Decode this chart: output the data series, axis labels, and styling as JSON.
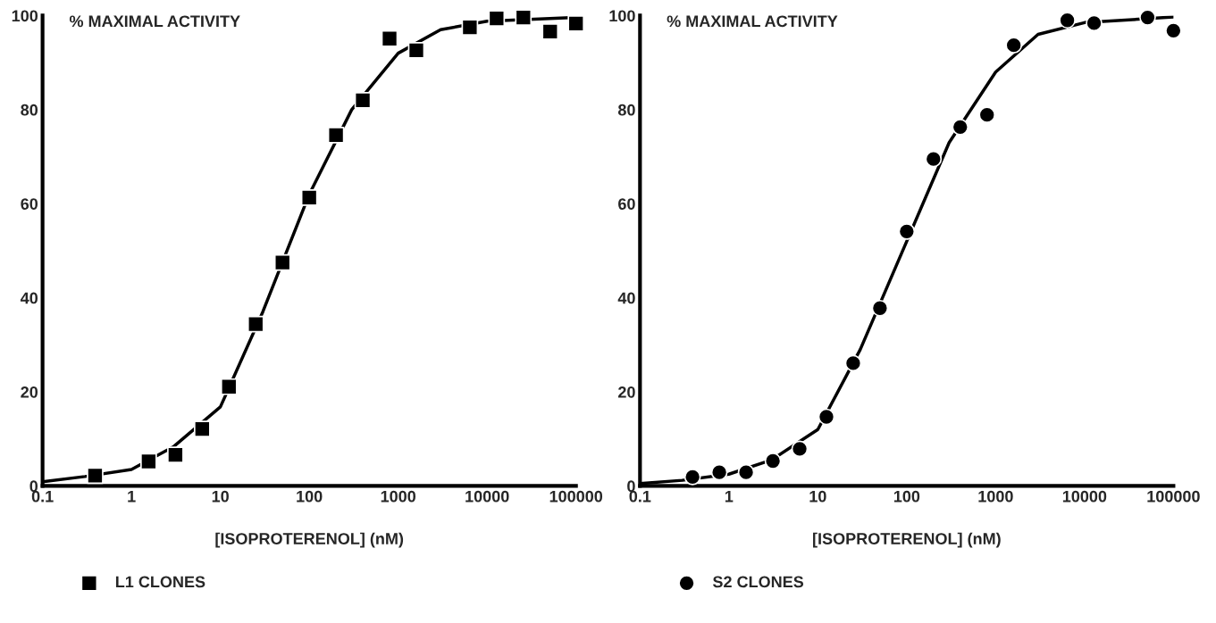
{
  "chart_data": [
    {
      "type": "scatter",
      "ylabel": "% MAXIMAL ACTIVITY",
      "xlabel": "[ISOPROTERENOL] (nM)",
      "log": "x",
      "xlim": [
        0.1,
        100000
      ],
      "ylim": [
        0,
        100
      ],
      "xticks": [
        0.1,
        1,
        10,
        100,
        1000,
        10000,
        100000
      ],
      "yticks": [
        0,
        20,
        40,
        60,
        80,
        100
      ],
      "grid": false,
      "legend": "bottom",
      "series": [
        {
          "name": "L1 CLONES",
          "marker": "square",
          "color": "#000000",
          "x": [
            0.39,
            1.56,
            3.125,
            6.25,
            12.5,
            25,
            50,
            100,
            200,
            400,
            800,
            1600,
            6400,
            12800,
            25600,
            51200,
            100000
          ],
          "values": [
            2.2,
            5.2,
            6.6,
            12.1,
            21.1,
            34.4,
            47.5,
            61.3,
            74.6,
            82,
            95.1,
            92.6,
            97.5,
            99.4,
            99.6,
            96.6,
            98.3
          ]
        },
        {
          "type": "line",
          "line_style": "solid",
          "color": "#000000",
          "x": [
            0.1,
            0.3,
            1,
            3,
            10,
            30,
            100,
            300,
            1000,
            3000,
            10000,
            100000
          ],
          "values": [
            0.9,
            2.0,
            3.5,
            8.4,
            16.8,
            37,
            62,
            80,
            92,
            97,
            98.8,
            99.6
          ]
        }
      ]
    },
    {
      "type": "scatter",
      "ylabel": "% MAXIMAL ACTIVITY",
      "xlabel": "[ISOPROTERENOL] (nM)",
      "log": "x",
      "xlim": [
        0.1,
        100000
      ],
      "ylim": [
        0,
        100
      ],
      "xticks": [
        0.1,
        1,
        10,
        100,
        1000,
        10000,
        100000
      ],
      "yticks": [
        0,
        20,
        40,
        60,
        80,
        100
      ],
      "grid": false,
      "legend": "bottom",
      "series": [
        {
          "name": "S2 CLONES",
          "marker": "circle",
          "color": "#000000",
          "x": [
            0.39,
            0.78,
            1.56,
            3.125,
            6.25,
            12.5,
            25,
            50,
            100,
            200,
            400,
            800,
            1600,
            6400,
            12800,
            51200,
            100000
          ],
          "values": [
            1.9,
            2.9,
            2.9,
            5.3,
            7.9,
            14.7,
            26.1,
            37.8,
            54.1,
            69.5,
            76.3,
            78.9,
            93.7,
            99.0,
            98.4,
            99.6,
            96.8
          ]
        },
        {
          "type": "line",
          "line_style": "solid",
          "color": "#000000",
          "x": [
            0.1,
            0.3,
            1,
            3,
            10,
            30,
            100,
            300,
            1000,
            3000,
            10000,
            100000
          ],
          "values": [
            0.5,
            1.2,
            2.5,
            5.5,
            12,
            29,
            52,
            73,
            88,
            96,
            98.5,
            99.7
          ]
        }
      ]
    }
  ]
}
